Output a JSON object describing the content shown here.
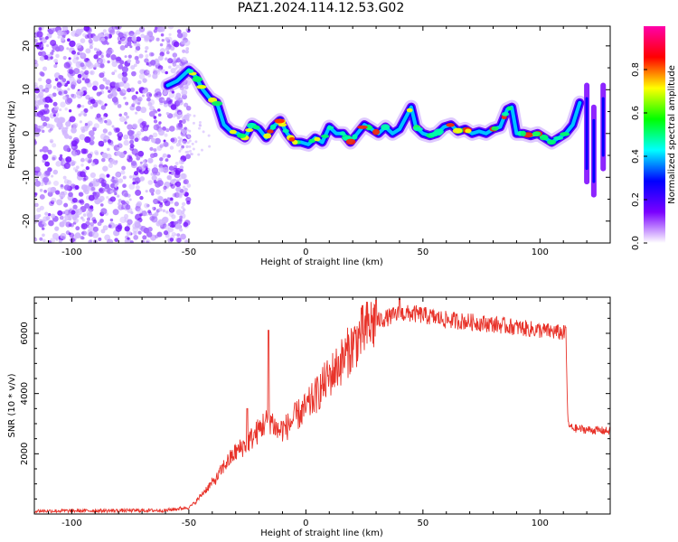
{
  "title": "PAZ1.2024.114.12.53.G02",
  "chart_data": [
    {
      "type": "heatmap",
      "xlabel": "Height of straight line (km)",
      "ylabel": "Frequency (Hz)",
      "xlim": [
        -116,
        130
      ],
      "ylim": [
        -25,
        24.5
      ],
      "xticks": [
        -100,
        -50,
        0,
        50,
        100
      ],
      "yticks": [
        -20,
        -10,
        0,
        10,
        20
      ],
      "colorbar": {
        "label": "Normalized spectral amplitude",
        "range": [
          0,
          1
        ],
        "ticks": [
          "0.0",
          "0.2",
          "0.4",
          "0.6",
          "0.8"
        ],
        "colors": [
          "#ffffff",
          "#7a00ff",
          "#0000ff",
          "#00ffff",
          "#00ff00",
          "#ffff00",
          "#ff0000",
          "#ff00aa"
        ]
      },
      "signal_ridge": {
        "x": [
          -59,
          -55,
          -50,
          -47,
          -44,
          -41,
          -38,
          -35,
          -32,
          -29,
          -26,
          -23,
          -20,
          -17,
          -14,
          -11,
          -8,
          -5,
          -2,
          1,
          4,
          7,
          10,
          13,
          16,
          19,
          22,
          25,
          28,
          31,
          34,
          37,
          40,
          43,
          45,
          47,
          50,
          53,
          56,
          59,
          62,
          65,
          68,
          71,
          74,
          77,
          80,
          83,
          86,
          88,
          90,
          93,
          96,
          99,
          102,
          105,
          108,
          111,
          114,
          117
        ],
        "y": [
          11,
          12,
          14.5,
          13,
          10,
          8,
          7,
          2,
          0.5,
          0,
          -1,
          2,
          1,
          -1,
          1.5,
          3,
          0,
          -2,
          -2,
          -2.5,
          -1,
          -2,
          1.5,
          0,
          0,
          -2,
          0,
          2,
          1,
          0,
          1.5,
          0,
          1,
          4,
          6,
          1.5,
          0,
          -0.5,
          0,
          1.5,
          2,
          0.5,
          1,
          0,
          0.5,
          0,
          1,
          1.5,
          5.5,
          6,
          0,
          0,
          -0.5,
          0,
          -1,
          -2,
          -1,
          0,
          2,
          7
        ]
      },
      "noise_region_x": [
        -116,
        -50
      ]
    },
    {
      "type": "line",
      "xlabel": "Height of straight line (km)",
      "ylabel": "SNR (10 * v/v)",
      "xlim": [
        -116,
        130
      ],
      "ylim": [
        0,
        7200
      ],
      "xticks": [
        -100,
        -50,
        0,
        50,
        100
      ],
      "yticks": [
        2000,
        4000,
        6000
      ],
      "color": "#e8332a",
      "envelope": {
        "x": [
          -116,
          -60,
          -50,
          -47,
          -44,
          -41,
          -38,
          -35,
          -30,
          -26,
          -22,
          -18,
          -15,
          -12,
          -8,
          -4,
          0,
          4,
          8,
          12,
          16,
          20,
          24,
          28,
          32,
          36,
          40,
          46,
          50,
          60,
          70,
          80,
          90,
          100,
          106,
          111,
          112,
          114,
          120,
          130
        ],
        "y": [
          100,
          120,
          220,
          400,
          700,
          950,
          1200,
          1600,
          2050,
          2300,
          2600,
          3000,
          3150,
          2750,
          2900,
          3250,
          3500,
          3900,
          4350,
          4750,
          5150,
          5600,
          6000,
          6300,
          6450,
          6550,
          6650,
          6650,
          6600,
          6450,
          6380,
          6300,
          6200,
          6100,
          6050,
          6000,
          2950,
          2850,
          2800,
          2750
        ]
      },
      "spikes": [
        {
          "x": -16,
          "y": 6100
        },
        {
          "x": -25,
          "y": 3500
        },
        {
          "x": 30,
          "y": 7100
        },
        {
          "x": 40,
          "y": 7150
        },
        {
          "x": 111,
          "y": 6200
        }
      ]
    }
  ]
}
